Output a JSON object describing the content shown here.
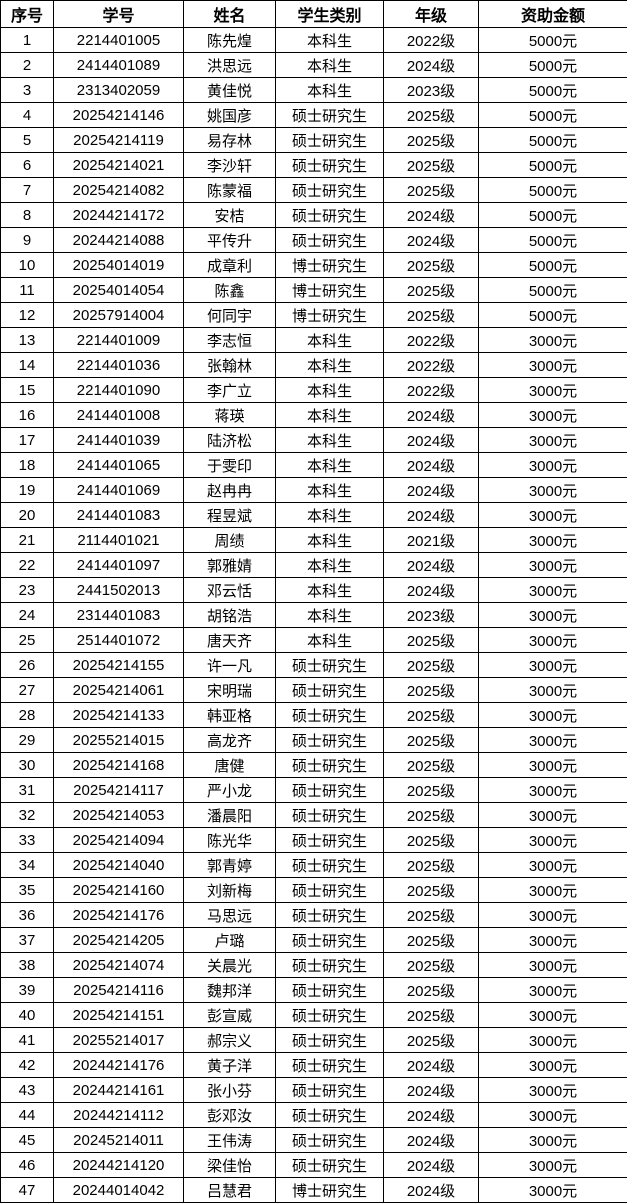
{
  "table": {
    "headers": [
      "序号",
      "学号",
      "姓名",
      "学生类别",
      "年级",
      "资助金额"
    ],
    "rows": [
      [
        "1",
        "2214401005",
        "陈先煌",
        "本科生",
        "2022级",
        "5000元"
      ],
      [
        "2",
        "2414401089",
        "洪思远",
        "本科生",
        "2024级",
        "5000元"
      ],
      [
        "3",
        "2313402059",
        "黄佳悦",
        "本科生",
        "2023级",
        "5000元"
      ],
      [
        "4",
        "20254214146",
        "姚国彦",
        "硕士研究生",
        "2025级",
        "5000元"
      ],
      [
        "5",
        "20254214119",
        "易存林",
        "硕士研究生",
        "2025级",
        "5000元"
      ],
      [
        "6",
        "20254214021",
        "李沙轩",
        "硕士研究生",
        "2025级",
        "5000元"
      ],
      [
        "7",
        "20254214082",
        "陈蒙福",
        "硕士研究生",
        "2025级",
        "5000元"
      ],
      [
        "8",
        "20244214172",
        "安桔",
        "硕士研究生",
        "2024级",
        "5000元"
      ],
      [
        "9",
        "20244214088",
        "平传升",
        "硕士研究生",
        "2024级",
        "5000元"
      ],
      [
        "10",
        "20254014019",
        "成章利",
        "博士研究生",
        "2025级",
        "5000元"
      ],
      [
        "11",
        "20254014054",
        "陈鑫",
        "博士研究生",
        "2025级",
        "5000元"
      ],
      [
        "12",
        "20257914004",
        "何同宇",
        "博士研究生",
        "2025级",
        "5000元"
      ],
      [
        "13",
        "2214401009",
        "李志恒",
        "本科生",
        "2022级",
        "3000元"
      ],
      [
        "14",
        "2214401036",
        "张翰林",
        "本科生",
        "2022级",
        "3000元"
      ],
      [
        "15",
        "2214401090",
        "李广立",
        "本科生",
        "2022级",
        "3000元"
      ],
      [
        "16",
        "2414401008",
        "蒋瑛",
        "本科生",
        "2024级",
        "3000元"
      ],
      [
        "17",
        "2414401039",
        "陆济松",
        "本科生",
        "2024级",
        "3000元"
      ],
      [
        "18",
        "2414401065",
        "于雯印",
        "本科生",
        "2024级",
        "3000元"
      ],
      [
        "19",
        "2414401069",
        "赵冉冉",
        "本科生",
        "2024级",
        "3000元"
      ],
      [
        "20",
        "2414401083",
        "程昱斌",
        "本科生",
        "2024级",
        "3000元"
      ],
      [
        "21",
        "2114401021",
        "周绩",
        "本科生",
        "2021级",
        "3000元"
      ],
      [
        "22",
        "2414401097",
        "郭雅婧",
        "本科生",
        "2024级",
        "3000元"
      ],
      [
        "23",
        "2441502013",
        "邓云恬",
        "本科生",
        "2024级",
        "3000元"
      ],
      [
        "24",
        "2314401083",
        "胡铭浩",
        "本科生",
        "2023级",
        "3000元"
      ],
      [
        "25",
        "2514401072",
        "唐天齐",
        "本科生",
        "2025级",
        "3000元"
      ],
      [
        "26",
        "20254214155",
        "许一凡",
        "硕士研究生",
        "2025级",
        "3000元"
      ],
      [
        "27",
        "20254214061",
        "宋明瑞",
        "硕士研究生",
        "2025级",
        "3000元"
      ],
      [
        "28",
        "20254214133",
        "韩亚格",
        "硕士研究生",
        "2025级",
        "3000元"
      ],
      [
        "29",
        "20255214015",
        "高龙齐",
        "硕士研究生",
        "2025级",
        "3000元"
      ],
      [
        "30",
        "20254214168",
        "唐健",
        "硕士研究生",
        "2025级",
        "3000元"
      ],
      [
        "31",
        "20254214117",
        "严小龙",
        "硕士研究生",
        "2025级",
        "3000元"
      ],
      [
        "32",
        "20254214053",
        "潘晨阳",
        "硕士研究生",
        "2025级",
        "3000元"
      ],
      [
        "33",
        "20254214094",
        "陈光华",
        "硕士研究生",
        "2025级",
        "3000元"
      ],
      [
        "34",
        "20254214040",
        "郭青婷",
        "硕士研究生",
        "2025级",
        "3000元"
      ],
      [
        "35",
        "20254214160",
        "刘新梅",
        "硕士研究生",
        "2025级",
        "3000元"
      ],
      [
        "36",
        "20254214176",
        "马思远",
        "硕士研究生",
        "2025级",
        "3000元"
      ],
      [
        "37",
        "20254214205",
        "卢璐",
        "硕士研究生",
        "2025级",
        "3000元"
      ],
      [
        "38",
        "20254214074",
        "关晨光",
        "硕士研究生",
        "2025级",
        "3000元"
      ],
      [
        "39",
        "20254214116",
        "魏邦洋",
        "硕士研究生",
        "2025级",
        "3000元"
      ],
      [
        "40",
        "20254214151",
        "彭宣威",
        "硕士研究生",
        "2025级",
        "3000元"
      ],
      [
        "41",
        "20255214017",
        "郝宗义",
        "硕士研究生",
        "2025级",
        "3000元"
      ],
      [
        "42",
        "20244214176",
        "黄子洋",
        "硕士研究生",
        "2024级",
        "3000元"
      ],
      [
        "43",
        "20244214161",
        "张小芬",
        "硕士研究生",
        "2024级",
        "3000元"
      ],
      [
        "44",
        "20244214112",
        "彭邓汝",
        "硕士研究生",
        "2024级",
        "3000元"
      ],
      [
        "45",
        "20245214011",
        "王伟涛",
        "硕士研究生",
        "2024级",
        "3000元"
      ],
      [
        "46",
        "20244214120",
        "梁佳怡",
        "硕士研究生",
        "2024级",
        "3000元"
      ],
      [
        "47",
        "20244014042",
        "吕慧君",
        "博士研究生",
        "2024级",
        "3000元"
      ]
    ],
    "column_keys": [
      "index",
      "student-id",
      "name",
      "category",
      "grade",
      "amount"
    ],
    "text_color": "#000000",
    "border_color": "#000000",
    "background_color": "#ffffff"
  }
}
